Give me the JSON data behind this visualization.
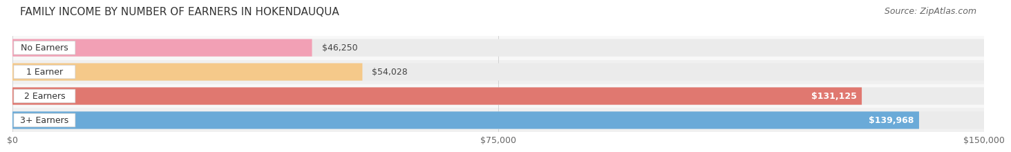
{
  "title": "FAMILY INCOME BY NUMBER OF EARNERS IN HOKENDAUQUA",
  "source": "Source: ZipAtlas.com",
  "categories": [
    "No Earners",
    "1 Earner",
    "2 Earners",
    "3+ Earners"
  ],
  "values": [
    46250,
    54028,
    131125,
    139968
  ],
  "bar_colors": [
    "#f2a0b5",
    "#f5c98a",
    "#e07870",
    "#6aaad8"
  ],
  "value_labels": [
    "$46,250",
    "$54,028",
    "$131,125",
    "$139,968"
  ],
  "xlim": [
    0,
    150000
  ],
  "xticks": [
    0,
    75000,
    150000
  ],
  "xtick_labels": [
    "$0",
    "$75,000",
    "$150,000"
  ],
  "background_color": "#ffffff",
  "bar_bg_color": "#ebebeb",
  "row_bg_colors": [
    "#f8f8f8",
    "#f0f0f0",
    "#f8f8f8",
    "#f0f0f0"
  ],
  "title_fontsize": 11,
  "source_fontsize": 9,
  "label_fontsize": 9,
  "value_fontsize": 9
}
